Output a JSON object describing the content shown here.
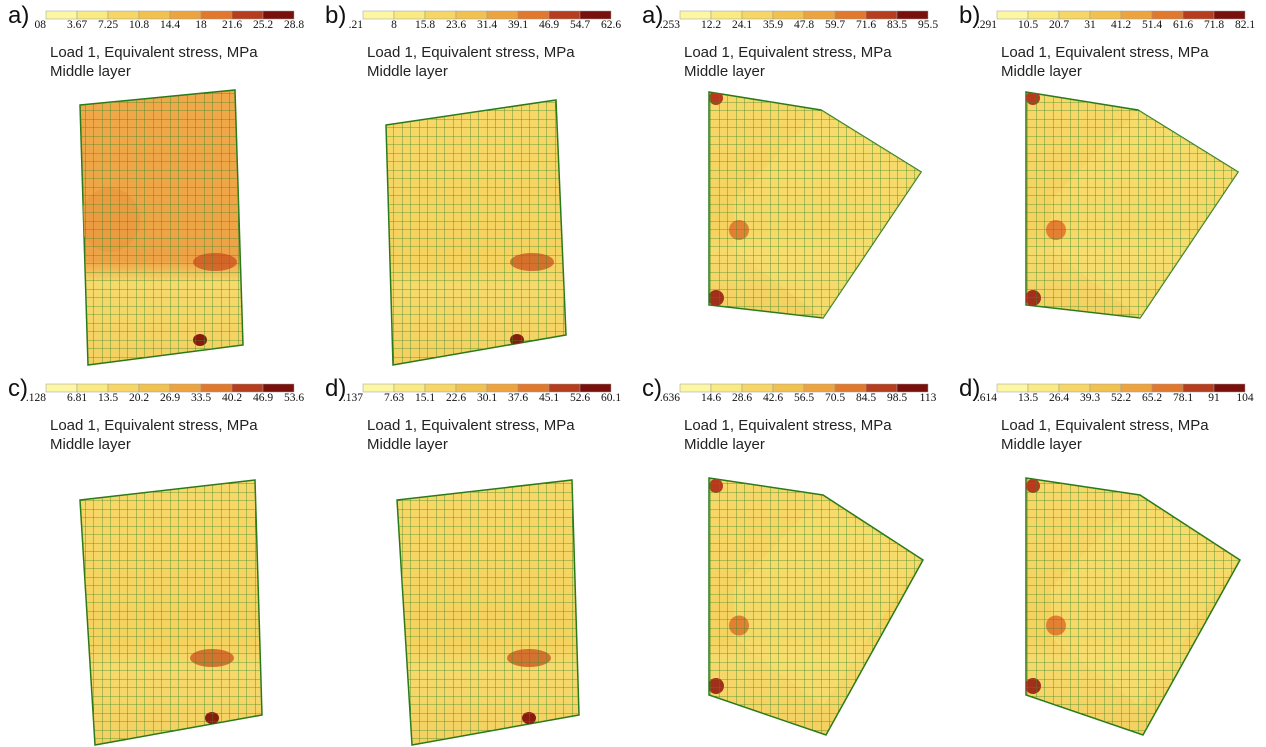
{
  "panels": [
    {
      "label": "a)",
      "ticks": [
        "08",
        "3.67",
        "7.25",
        "10.8",
        "14.4",
        "18",
        "21.6",
        "25.2",
        "28.8"
      ],
      "caption": "Load 1, Equivalent stress, MPa",
      "layer": "Middle layer"
    },
    {
      "label": "b)",
      "ticks": [
        ".21",
        "8",
        "15.8",
        "23.6",
        "31.4",
        "39.1",
        "46.9",
        "54.7",
        "62.6"
      ],
      "caption": "Load 1, Equivalent stress, MPa",
      "layer": "Middle layer"
    },
    {
      "label": "a)",
      "ticks": [
        ".253",
        "12.2",
        "24.1",
        "35.9",
        "47.8",
        "59.7",
        "71.6",
        "83.5",
        "95.5"
      ],
      "caption": "Load 1, Equivalent stress, MPa",
      "layer": "Middle layer"
    },
    {
      "label": "b)",
      "ticks": [
        ".291",
        "10.5",
        "20.7",
        "31",
        "41.2",
        "51.4",
        "61.6",
        "71.8",
        "82.1"
      ],
      "caption": "Load 1, Equivalent stress, MPa",
      "layer": "Middle layer"
    },
    {
      "label": "c)",
      "ticks": [
        ".128",
        "6.81",
        "13.5",
        "20.2",
        "26.9",
        "33.5",
        "40.2",
        "46.9",
        "53.6"
      ],
      "caption": "Load 1, Equivalent stress, MPa",
      "layer": "Middle layer"
    },
    {
      "label": "d)",
      "ticks": [
        ".137",
        "7.63",
        "15.1",
        "22.6",
        "30.1",
        "37.6",
        "45.1",
        "52.6",
        "60.1"
      ],
      "caption": "Load 1, Equivalent stress, MPa",
      "layer": "Middle layer"
    },
    {
      "label": "c)",
      "ticks": [
        ".636",
        "14.6",
        "28.6",
        "42.6",
        "56.5",
        "70.5",
        "84.5",
        "98.5",
        "113"
      ],
      "caption": "Load 1, Equivalent stress, MPa",
      "layer": "Middle layer"
    },
    {
      "label": "d)",
      "ticks": [
        ".614",
        "13.5",
        "26.4",
        "39.3",
        "52.2",
        "65.2",
        "78.1",
        "91",
        "104"
      ],
      "caption": "Load 1, Equivalent stress, MPa",
      "layer": "Middle layer"
    }
  ]
}
